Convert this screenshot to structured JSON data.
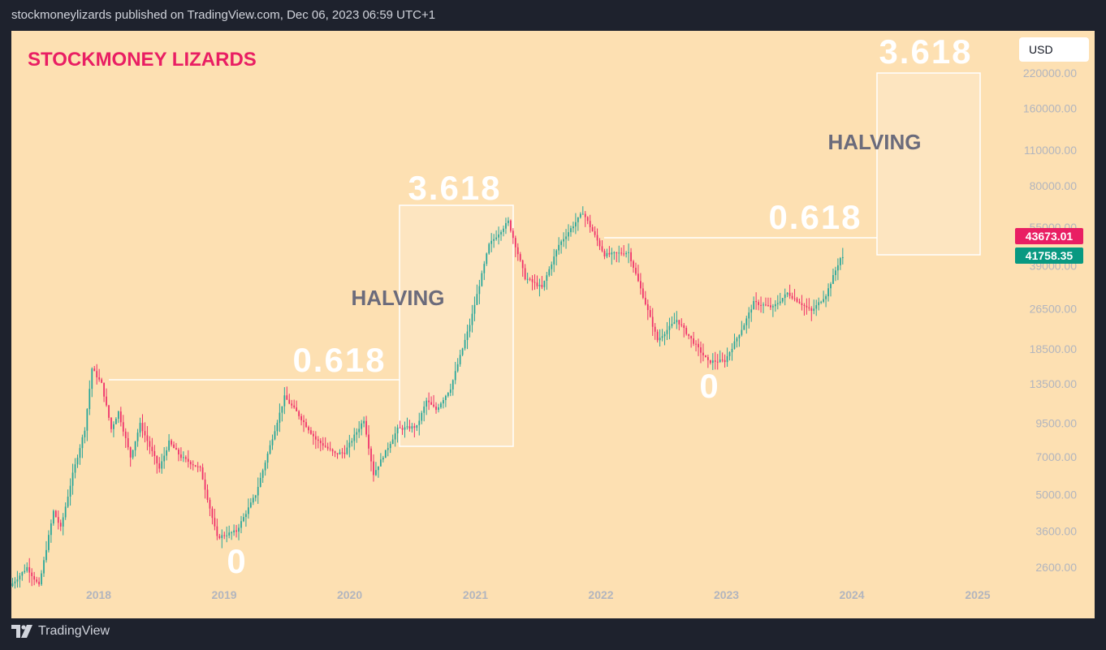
{
  "header": {
    "publish_text": "stockmoneylizards published on TradingView.com, Dec 06, 2023 06:59 UTC+1"
  },
  "footer": {
    "brand": "TradingView"
  },
  "chart": {
    "currency_button": "USD",
    "watermark_title": "STOCKMONEY LIZARDS",
    "colors": {
      "background": "#fde0b2",
      "up": "#26a69a",
      "down": "#ef2f6a",
      "title": "#e91e63",
      "annotation": "#ffffff",
      "halving": "#6b6b7b",
      "axis_text": "#b2b5be"
    },
    "price_tags": [
      {
        "label": "43673.01",
        "color": "#e91e63"
      },
      {
        "label": "41758.35",
        "color": "#089981"
      }
    ],
    "annotations": [
      {
        "text": "0.618"
      },
      {
        "text": "3.618"
      },
      {
        "text": "HALVING"
      },
      {
        "text": "0"
      },
      {
        "text": "0"
      },
      {
        "text": "0.618"
      },
      {
        "text": "HALVING"
      },
      {
        "text": "3.618"
      }
    ]
  },
  "chart_data": {
    "type": "candlestick",
    "symbol": "BTCUSD",
    "interval": "weekly",
    "y_scale": "log",
    "ylim": [
      2300,
      240000
    ],
    "y_tick_labels": [
      "2600.00",
      "3600.00",
      "5000.00",
      "7000.00",
      "9500.00",
      "13500.00",
      "18500.00",
      "26500.00",
      "39000.00",
      "55000.00",
      "80000.00",
      "110000.00",
      "160000.00",
      "220000.00"
    ],
    "xlim": [
      "2017-04-22",
      "2025-04-15"
    ],
    "x_tick_labels": [
      "2018",
      "2019",
      "2020",
      "2021",
      "2022",
      "2023",
      "2024",
      "2025"
    ],
    "anchors": [
      [
        "2017-04-22",
        2200
      ],
      [
        "2017-06-10",
        2600
      ],
      [
        "2017-07-15",
        2200
      ],
      [
        "2017-08-26",
        4300
      ],
      [
        "2017-09-16",
        3700
      ],
      [
        "2017-10-21",
        6000
      ],
      [
        "2017-11-25",
        9000
      ],
      [
        "2017-12-16",
        15500
      ],
      [
        "2018-01-13",
        13500
      ],
      [
        "2018-02-10",
        9000
      ],
      [
        "2018-03-03",
        10500
      ],
      [
        "2018-04-07",
        7000
      ],
      [
        "2018-05-05",
        9400
      ],
      [
        "2018-06-30",
        6300
      ],
      [
        "2018-07-28",
        8000
      ],
      [
        "2018-09-01",
        7000
      ],
      [
        "2018-10-27",
        6300
      ],
      [
        "2018-12-15",
        3400
      ],
      [
        "2019-02-09",
        3600
      ],
      [
        "2019-04-06",
        5000
      ],
      [
        "2019-06-29",
        12000
      ],
      [
        "2019-08-03",
        10500
      ],
      [
        "2019-09-28",
        8200
      ],
      [
        "2019-11-23",
        7200
      ],
      [
        "2019-12-21",
        7300
      ],
      [
        "2020-02-15",
        9800
      ],
      [
        "2020-03-14",
        6000
      ],
      [
        "2020-05-23",
        9000
      ],
      [
        "2020-07-18",
        9200
      ],
      [
        "2020-08-15",
        11600
      ],
      [
        "2020-09-12",
        10700
      ],
      [
        "2020-10-24",
        13000
      ],
      [
        "2020-12-19",
        23000
      ],
      [
        "2021-02-13",
        47000
      ],
      [
        "2021-04-10",
        58000
      ],
      [
        "2021-05-29",
        35000
      ],
      [
        "2021-07-17",
        32000
      ],
      [
        "2021-09-04",
        47000
      ],
      [
        "2021-11-13",
        63000
      ],
      [
        "2022-01-15",
        43000
      ],
      [
        "2022-03-26",
        44000
      ],
      [
        "2022-06-18",
        20000
      ],
      [
        "2022-08-13",
        24000
      ],
      [
        "2022-11-12",
        16500
      ],
      [
        "2022-12-31",
        16600
      ],
      [
        "2023-02-25",
        23000
      ],
      [
        "2023-03-25",
        28000
      ],
      [
        "2023-05-20",
        26800
      ],
      [
        "2023-07-01",
        30500
      ],
      [
        "2023-09-09",
        25900
      ],
      [
        "2023-10-21",
        30000
      ],
      [
        "2023-12-02",
        41758
      ]
    ]
  }
}
